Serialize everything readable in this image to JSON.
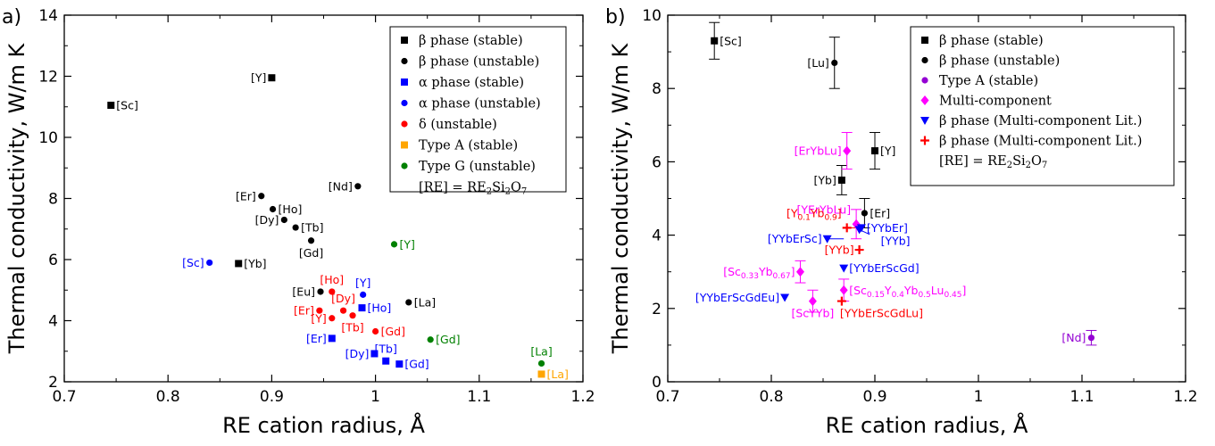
{
  "chart_data": [
    {
      "type": "scatter",
      "panel_label": "a)",
      "xlabel": "RE cation radius, Å",
      "ylabel": "Thermal conductivity, W/m K",
      "xlim": [
        0.7,
        1.2
      ],
      "ylim": [
        2,
        14
      ],
      "xticks": [
        "0.7",
        "0.8",
        "0.9",
        "1",
        "1.1",
        "1.2"
      ],
      "yticks": [
        "2",
        "4",
        "6",
        "8",
        "10",
        "12",
        "14"
      ],
      "legend_position": "top-right",
      "legend_note": "[RE] = RE2Si2O7",
      "series": [
        {
          "name": "β phase (stable)",
          "marker": "square",
          "color": "#000000",
          "points": [
            {
              "x": 0.745,
              "y": 11.05,
              "label": "[Sc]",
              "label_side": "right"
            },
            {
              "x": 0.9,
              "y": 11.95,
              "label": "[Y]",
              "label_side": "left"
            },
            {
              "x": 0.868,
              "y": 5.87,
              "label": "[Yb]",
              "label_side": "right"
            }
          ]
        },
        {
          "name": "β phase (unstable)",
          "marker": "circle",
          "color": "#000000",
          "points": [
            {
              "x": 0.89,
              "y": 8.08,
              "label": "[Er]",
              "label_side": "left"
            },
            {
              "x": 0.901,
              "y": 7.65,
              "label": "[Ho]",
              "label_side": "right"
            },
            {
              "x": 0.912,
              "y": 7.3,
              "label": "[Dy]",
              "label_side": "left"
            },
            {
              "x": 0.923,
              "y": 7.05,
              "label": "[Tb]",
              "label_side": "right"
            },
            {
              "x": 0.938,
              "y": 6.62,
              "label": "[Gd]",
              "label_side": "below"
            },
            {
              "x": 0.983,
              "y": 8.4,
              "label": "[Nd]",
              "label_side": "left"
            },
            {
              "x": 0.947,
              "y": 4.95,
              "label": "[Eu]",
              "label_side": "left"
            },
            {
              "x": 1.032,
              "y": 4.6,
              "label": "[La]",
              "label_side": "right"
            }
          ]
        },
        {
          "name": "α phase (stable)",
          "marker": "square",
          "color": "#0000ff",
          "points": [
            {
              "x": 0.987,
              "y": 4.42,
              "label": "[Ho]",
              "label_side": "right"
            },
            {
              "x": 0.958,
              "y": 3.42,
              "label": "[Er]",
              "label_side": "left"
            },
            {
              "x": 0.999,
              "y": 2.92,
              "label": "[Dy]",
              "label_side": "left"
            },
            {
              "x": 1.01,
              "y": 2.68,
              "label": "[Tb]",
              "label_side": "above"
            },
            {
              "x": 1.023,
              "y": 2.58,
              "label": "[Gd]",
              "label_side": "right"
            }
          ]
        },
        {
          "name": "α phase (unstable)",
          "marker": "circle",
          "color": "#0000ff",
          "points": [
            {
              "x": 0.84,
              "y": 5.9,
              "label": "[Sc]",
              "label_side": "left"
            },
            {
              "x": 0.988,
              "y": 4.85,
              "label": "[Y]",
              "label_side": "above"
            }
          ]
        },
        {
          "name": "δ (unstable)",
          "marker": "circle",
          "color": "#ff0000",
          "points": [
            {
              "x": 0.958,
              "y": 4.95,
              "label": "[Ho]",
              "label_side": "above"
            },
            {
              "x": 0.946,
              "y": 4.33,
              "label": "[Er]",
              "label_side": "left"
            },
            {
              "x": 0.969,
              "y": 4.33,
              "label": "[Dy]",
              "label_side": "above"
            },
            {
              "x": 0.958,
              "y": 4.08,
              "label": "[Y]",
              "label_side": "left"
            },
            {
              "x": 0.978,
              "y": 4.17,
              "label": "[Tb]",
              "label_side": "below"
            },
            {
              "x": 1.0,
              "y": 3.65,
              "label": "[Gd]",
              "label_side": "right"
            }
          ]
        },
        {
          "name": "Type A (stable)",
          "marker": "square",
          "color": "#ffa500",
          "points": [
            {
              "x": 1.16,
              "y": 2.25,
              "label": "[La]",
              "label_side": "right"
            }
          ]
        },
        {
          "name": "Type G (unstable)",
          "marker": "circle",
          "color": "#008000",
          "points": [
            {
              "x": 1.018,
              "y": 6.5,
              "label": "[Y]",
              "label_side": "right"
            },
            {
              "x": 1.053,
              "y": 3.38,
              "label": "[Gd]",
              "label_side": "right"
            },
            {
              "x": 1.16,
              "y": 2.6,
              "label": "[La]",
              "label_side": "above"
            }
          ]
        }
      ]
    },
    {
      "type": "scatter",
      "panel_label": "b)",
      "xlabel": "RE cation radius, Å",
      "ylabel": "Thermal conductivity, W/m K",
      "xlim": [
        0.7,
        1.2
      ],
      "ylim": [
        0,
        10
      ],
      "xticks": [
        "0.7",
        "0.8",
        "0.9",
        "1",
        "1.1",
        "1.2"
      ],
      "yticks": [
        "0",
        "2",
        "4",
        "6",
        "8",
        "10"
      ],
      "legend_position": "top-right",
      "legend_note": "[RE] = RE2Si2O7",
      "series": [
        {
          "name": "β phase (stable)",
          "marker": "square",
          "color": "#000000",
          "points": [
            {
              "x": 0.745,
              "y": 9.3,
              "err": 0.5,
              "label": "[Sc]",
              "label_side": "right"
            },
            {
              "x": 0.868,
              "y": 5.5,
              "err": 0.4,
              "label": "[Yb]",
              "label_side": "left"
            },
            {
              "x": 0.9,
              "y": 6.3,
              "err": 0.5,
              "label": "[Y]",
              "label_side": "right"
            }
          ]
        },
        {
          "name": "β phase (unstable)",
          "marker": "circle",
          "color": "#000000",
          "points": [
            {
              "x": 0.861,
              "y": 8.7,
              "err": 0.7,
              "label": "[Lu]",
              "label_side": "left"
            },
            {
              "x": 0.89,
              "y": 4.6,
              "err": 0.4,
              "label": "[Er]",
              "label_side": "right"
            }
          ]
        },
        {
          "name": "Type A (stable)",
          "marker": "circle",
          "color": "#9400d3",
          "points": [
            {
              "x": 1.109,
              "y": 1.2,
              "err": 0.2,
              "label": "[Nd]",
              "label_side": "left"
            }
          ]
        },
        {
          "name": "Multi-component",
          "marker": "diamond",
          "color": "#ff00ff",
          "points": [
            {
              "x": 0.873,
              "y": 6.3,
              "err": 0.5,
              "label": "[ErYbLu]",
              "label_side": "left"
            },
            {
              "x": 0.882,
              "y": 4.3,
              "err": 0.4,
              "label": "[YErYbLu]",
              "label_side": "upleft"
            },
            {
              "x": 0.828,
              "y": 3.0,
              "err": 0.3,
              "label": "[Sc",
              "sub1": "0.33",
              "mid1": "Yb",
              "sub2": "0.67",
              "end": "]",
              "label_side": "left"
            },
            {
              "x": 0.87,
              "y": 2.5,
              "err": 0.3,
              "label": "[Sc",
              "sub1": "0.15",
              "mid1": "Y",
              "sub2": "0.4",
              "mid2": "Yb",
              "sub3": "0.5",
              "mid3": "Lu",
              "sub4": "0.45",
              "end": "]",
              "label_side": "right"
            },
            {
              "x": 0.84,
              "y": 2.2,
              "err": 0.3,
              "label": "[ScYYb]",
              "label_side": "below"
            }
          ]
        },
        {
          "name": "β phase (Multi-component Lit.)",
          "marker": "triangle-down",
          "color": "#0000ff",
          "points": [
            {
              "x": 0.854,
              "y": 3.9,
              "label": "[YYbErSc]",
              "label_side": "left"
            },
            {
              "x": 0.887,
              "y": 4.2,
              "label": "[YYbEr]",
              "label_side": "right"
            },
            {
              "x": 0.885,
              "y": 4.15,
              "label": "[YYb]",
              "label_side": "rightlow"
            },
            {
              "x": 0.87,
              "y": 3.1,
              "label": "[YYbErScGd]",
              "label_side": "right"
            },
            {
              "x": 0.813,
              "y": 2.3,
              "label": "[YYbErScGdEu]",
              "label_side": "left"
            }
          ]
        },
        {
          "name": "β phase (Multi-component Lit.)",
          "marker": "plus",
          "color": "#ff0000",
          "points": [
            {
              "x": 0.873,
              "y": 4.2,
              "label": "[Y",
              "sub1": "0.1",
              "mid1": "Yb",
              "sub2": "0.9",
              "end": "]",
              "label_side": "upleft"
            },
            {
              "x": 0.885,
              "y": 3.6,
              "label": "[YYb]",
              "label_side": "left"
            },
            {
              "x": 0.868,
              "y": 2.2,
              "label": "[YYbErScGdLu]",
              "label_side": "belowright"
            }
          ]
        }
      ]
    }
  ]
}
